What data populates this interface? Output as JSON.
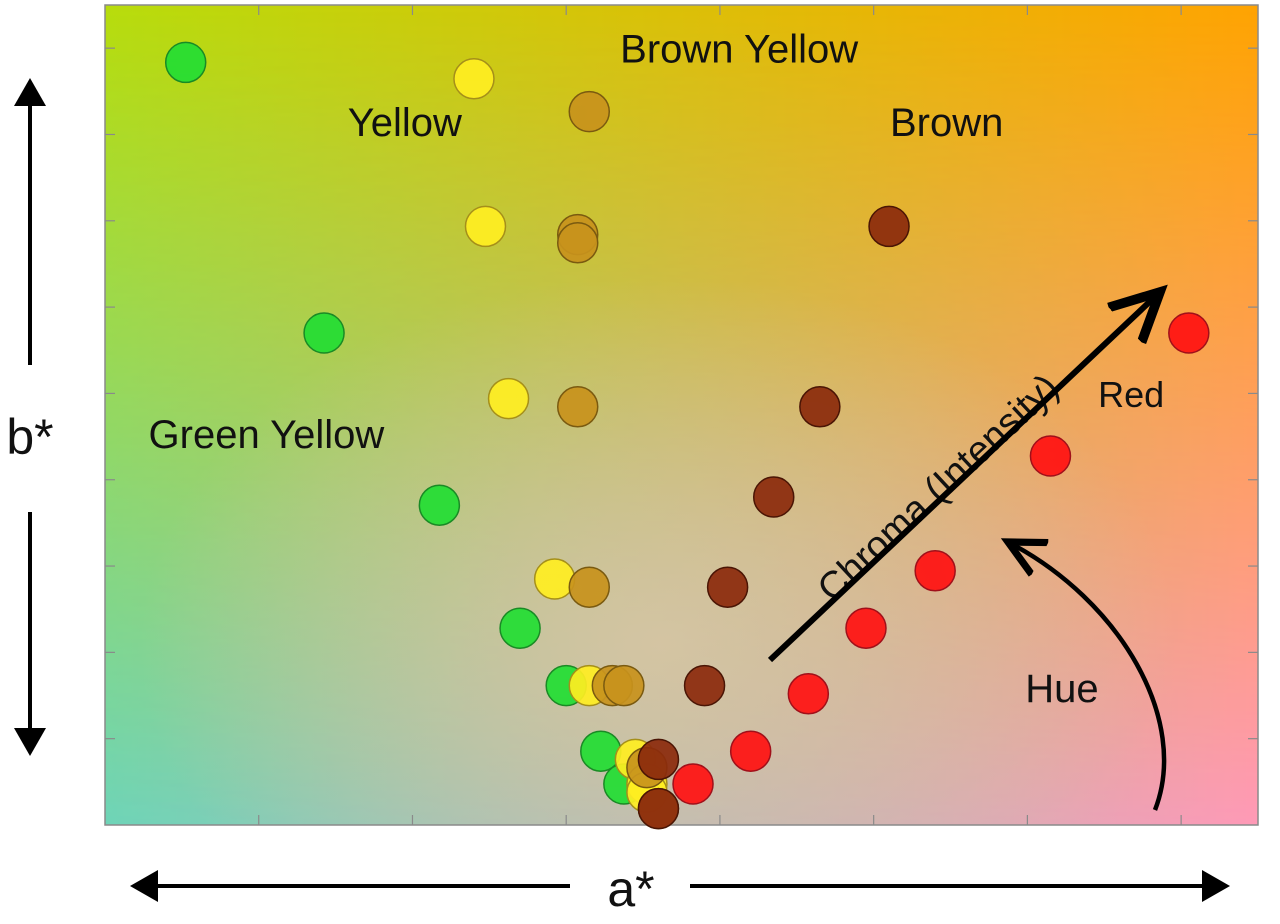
{
  "chart_data": {
    "type": "scatter",
    "title": "",
    "xlabel": "a*",
    "ylabel": "b*",
    "xlim": [
      0,
      1
    ],
    "ylim": [
      0,
      1
    ],
    "grid": false,
    "legend": "none",
    "series": [
      {
        "name": "Green Yellow",
        "color": "#22dd33",
        "stroke": "#1a8a25",
        "points": [
          [
            0.07,
            0.93
          ],
          [
            0.19,
            0.6
          ],
          [
            0.29,
            0.39
          ],
          [
            0.36,
            0.24
          ],
          [
            0.4,
            0.17
          ],
          [
            0.43,
            0.09
          ],
          [
            0.45,
            0.05
          ]
        ]
      },
      {
        "name": "Yellow",
        "color": "#ffee22",
        "stroke": "#a58f1a",
        "points": [
          [
            0.32,
            0.91
          ],
          [
            0.33,
            0.73
          ],
          [
            0.35,
            0.52
          ],
          [
            0.39,
            0.3
          ],
          [
            0.42,
            0.17
          ],
          [
            0.46,
            0.08
          ],
          [
            0.47,
            0.05
          ],
          [
            0.47,
            0.04
          ]
        ]
      },
      {
        "name": "Brown Yellow",
        "color": "#c8921c",
        "stroke": "#7a5a10",
        "points": [
          [
            0.42,
            0.87
          ],
          [
            0.41,
            0.72
          ],
          [
            0.41,
            0.71
          ],
          [
            0.41,
            0.51
          ],
          [
            0.42,
            0.29
          ],
          [
            0.44,
            0.17
          ],
          [
            0.45,
            0.17
          ],
          [
            0.47,
            0.07
          ],
          [
            0.48,
            0.02
          ]
        ]
      },
      {
        "name": "Brown",
        "color": "#8b2a0c",
        "stroke": "#4a1505",
        "points": [
          [
            0.68,
            0.73
          ],
          [
            0.62,
            0.51
          ],
          [
            0.58,
            0.4
          ],
          [
            0.54,
            0.29
          ],
          [
            0.52,
            0.17
          ],
          [
            0.48,
            0.08
          ],
          [
            0.48,
            0.02
          ]
        ]
      },
      {
        "name": "Red",
        "color": "#ff1111",
        "stroke": "#a0101a",
        "points": [
          [
            0.94,
            0.6
          ],
          [
            0.82,
            0.45
          ],
          [
            0.72,
            0.31
          ],
          [
            0.66,
            0.24
          ],
          [
            0.61,
            0.16
          ],
          [
            0.56,
            0.09
          ],
          [
            0.51,
            0.05
          ]
        ]
      }
    ],
    "annotations": [
      {
        "text": "Brown Yellow",
        "at": [
          0.55,
          0.93
        ]
      },
      {
        "text": "Yellow",
        "at": [
          0.26,
          0.84
        ]
      },
      {
        "text": "Brown",
        "at": [
          0.73,
          0.84
        ]
      },
      {
        "text": "Green Yellow",
        "at": [
          0.14,
          0.46
        ]
      },
      {
        "text": "Red",
        "at": [
          0.89,
          0.51
        ]
      },
      {
        "text": "Chroma (Intensity)",
        "at": [
          0.73,
          0.4
        ]
      },
      {
        "text": "Hue",
        "at": [
          0.83,
          0.15
        ]
      }
    ],
    "background_gradient": {
      "top_left": "#b8dc0a",
      "top_right": "#ffa300",
      "bottom_left": "#66d4cc",
      "bottom_right": "#ff99cc",
      "center": "#d8c6a6"
    }
  }
}
